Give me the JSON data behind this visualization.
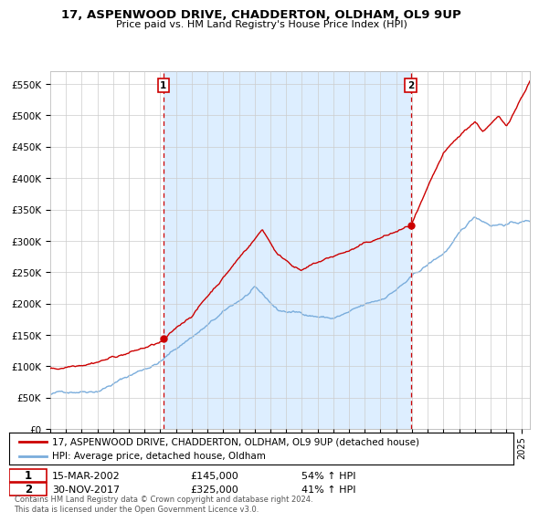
{
  "title": "17, ASPENWOOD DRIVE, CHADDERTON, OLDHAM, OL9 9UP",
  "subtitle": "Price paid vs. HM Land Registry's House Price Index (HPI)",
  "ylim": [
    0,
    570000
  ],
  "xlim_start": 1995.0,
  "xlim_end": 2025.5,
  "sale1_date": 2002.2,
  "sale1_price": 145000,
  "sale1_label": "1",
  "sale2_date": 2017.92,
  "sale2_price": 325000,
  "sale2_label": "2",
  "property_color": "#cc0000",
  "hpi_color": "#7aaddc",
  "shade_color": "#ddeeff",
  "grid_color": "#cccccc",
  "background_color": "#ffffff",
  "legend_property": "17, ASPENWOOD DRIVE, CHADDERTON, OLDHAM, OL9 9UP (detached house)",
  "legend_hpi": "HPI: Average price, detached house, Oldham",
  "annotation1_date": "15-MAR-2002",
  "annotation1_price": "£145,000",
  "annotation1_hpi": "54% ↑ HPI",
  "annotation2_date": "30-NOV-2017",
  "annotation2_price": "£325,000",
  "annotation2_hpi": "41% ↑ HPI",
  "copyright_text": "Contains HM Land Registry data © Crown copyright and database right 2024.\nThis data is licensed under the Open Government Licence v3.0."
}
